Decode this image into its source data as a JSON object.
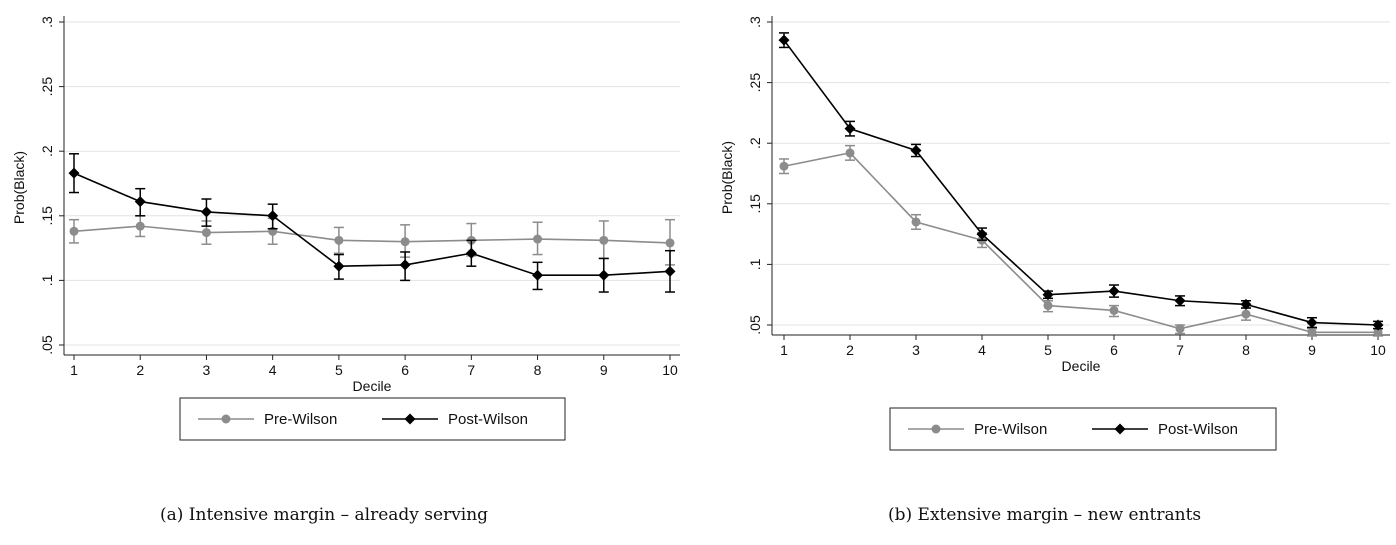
{
  "chart_data": [
    {
      "type": "line",
      "caption": "(a)  Intensive margin – already serving",
      "xlabel": "Decile",
      "ylabel": "Prob(Black)",
      "x": [
        1,
        2,
        3,
        4,
        5,
        6,
        7,
        8,
        9,
        10
      ],
      "xticks": [
        "1",
        "2",
        "3",
        "4",
        "5",
        "6",
        "7",
        "8",
        "9",
        "10"
      ],
      "ylim": [
        0.05,
        0.3
      ],
      "yticks": [
        0.05,
        0.1,
        0.15,
        0.2,
        0.25,
        0.3
      ],
      "ytick_labels": [
        ".05",
        ".1",
        ".15",
        ".2",
        ".25",
        ".3"
      ],
      "grid": true,
      "legend_position": "bottom",
      "series": [
        {
          "name": "Pre-Wilson",
          "color": "#8c8c8c",
          "marker": "circle",
          "values": [
            0.138,
            0.142,
            0.137,
            0.138,
            0.131,
            0.13,
            0.131,
            0.132,
            0.131,
            0.129
          ],
          "ci_low": [
            0.129,
            0.134,
            0.128,
            0.128,
            0.121,
            0.118,
            0.119,
            0.12,
            0.117,
            0.112
          ],
          "ci_high": [
            0.147,
            0.15,
            0.146,
            0.148,
            0.141,
            0.143,
            0.144,
            0.145,
            0.146,
            0.147
          ]
        },
        {
          "name": "Post-Wilson",
          "color": "#000000",
          "marker": "diamond",
          "values": [
            0.183,
            0.161,
            0.153,
            0.15,
            0.111,
            0.112,
            0.121,
            0.104,
            0.104,
            0.107
          ],
          "ci_low": [
            0.168,
            0.15,
            0.142,
            0.14,
            0.101,
            0.1,
            0.111,
            0.093,
            0.091,
            0.091
          ],
          "ci_high": [
            0.198,
            0.171,
            0.163,
            0.159,
            0.12,
            0.122,
            0.131,
            0.114,
            0.117,
            0.123
          ]
        }
      ]
    },
    {
      "type": "line",
      "caption": "(b)  Extensive margin – new entrants",
      "xlabel": "Decile",
      "ylabel": "Prob(Black)",
      "x": [
        1,
        2,
        3,
        4,
        5,
        6,
        7,
        8,
        9,
        10
      ],
      "xticks": [
        "1",
        "2",
        "3",
        "4",
        "5",
        "6",
        "7",
        "8",
        "9",
        "10"
      ],
      "ylim": [
        0.05,
        0.3
      ],
      "yticks": [
        0.05,
        0.1,
        0.15,
        0.2,
        0.25,
        0.3
      ],
      "ytick_labels": [
        ".05",
        ".1",
        ".15",
        ".2",
        ".25",
        ".3"
      ],
      "grid": true,
      "legend_position": "bottom",
      "series": [
        {
          "name": "Pre-Wilson",
          "color": "#8c8c8c",
          "marker": "circle",
          "values": [
            0.181,
            0.192,
            0.135,
            0.12,
            0.066,
            0.062,
            0.047,
            0.059,
            0.044,
            0.044
          ],
          "ci_low": [
            0.175,
            0.186,
            0.129,
            0.114,
            0.061,
            0.057,
            0.043,
            0.054,
            0.041,
            0.041
          ],
          "ci_high": [
            0.187,
            0.198,
            0.141,
            0.126,
            0.07,
            0.066,
            0.05,
            0.064,
            0.047,
            0.047
          ]
        },
        {
          "name": "Post-Wilson",
          "color": "#000000",
          "marker": "diamond",
          "values": [
            0.285,
            0.212,
            0.194,
            0.125,
            0.075,
            0.078,
            0.07,
            0.067,
            0.052,
            0.05
          ],
          "ci_low": [
            0.279,
            0.206,
            0.189,
            0.12,
            0.072,
            0.073,
            0.066,
            0.064,
            0.048,
            0.047
          ],
          "ci_high": [
            0.291,
            0.218,
            0.199,
            0.13,
            0.078,
            0.083,
            0.074,
            0.07,
            0.056,
            0.053
          ]
        }
      ]
    }
  ]
}
